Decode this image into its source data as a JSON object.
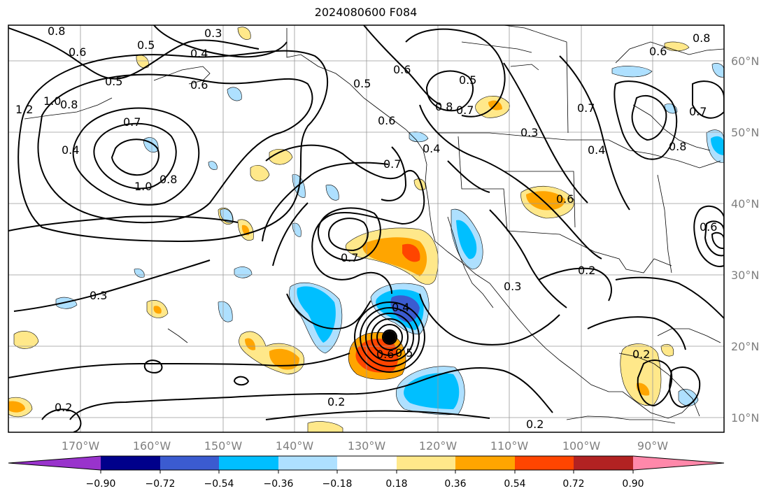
{
  "title": "2024080600 F084",
  "lat_labels": [
    "60°N",
    "50°N",
    "40°N",
    "30°N",
    "20°N",
    "10°N"
  ],
  "lon_labels": [
    "170°W",
    "160°W",
    "150°W",
    "140°W",
    "130°W",
    "120°W",
    "110°W",
    "100°W",
    "90°W"
  ],
  "colorbar": {
    "colors": [
      "#9933cc",
      "#00008b",
      "#3b5bd0",
      "#00bfff",
      "#aee0ff",
      "#ffffff",
      "#ffe88a",
      "#ffa500",
      "#ff4500",
      "#b22222",
      "#ff88aa"
    ],
    "tick_labels": [
      "−0.90",
      "−0.72",
      "−0.54",
      "−0.36",
      "−0.18",
      "0.18",
      "0.36",
      "0.54",
      "0.72",
      "0.90"
    ]
  },
  "contour_labels": [
    "0.8",
    "0.6",
    "0.3",
    "0.5",
    "0.4",
    "0.6",
    "0.5",
    "1.2",
    "1.0",
    "0.8",
    "0.7",
    "0.4",
    "1.0",
    "0.8",
    "0.7",
    "0.5",
    "0.6",
    "0.8",
    "0.7",
    "0.3",
    "0.4",
    "0.6",
    "0.5",
    "0.4",
    "0.7",
    "0.8",
    "0.7",
    "0.6",
    "0.3",
    "0.2",
    "0.4",
    "0.5",
    "0.6",
    "0.2",
    "0.2",
    "0.2",
    "0.7",
    "0.3",
    "0.2",
    "0.6",
    "0.8",
    "0.6"
  ],
  "marker": {
    "name": "storm-center",
    "lon": -126.5,
    "lat": 21.4
  }
}
